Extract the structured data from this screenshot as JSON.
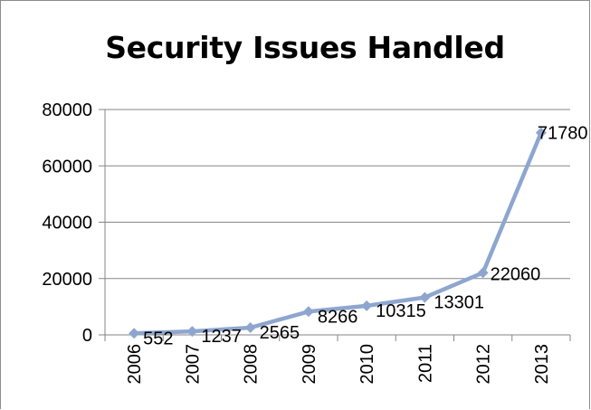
{
  "chart_data": {
    "type": "line",
    "title": "Security Issues Handled",
    "categories": [
      "2006",
      "2007",
      "2008",
      "2009",
      "2010",
      "2011",
      "2012",
      "2013"
    ],
    "series": [
      {
        "values": [
          552,
          1237,
          2565,
          8266,
          10315,
          13301,
          22060,
          71780
        ],
        "color": "#8EA6CF"
      }
    ],
    "data_labels": [
      "552",
      "1237",
      "2565",
      "8266",
      "10315",
      "13301",
      "22060",
      "71780"
    ],
    "y_ticks": [
      "0",
      "20000",
      "40000",
      "60000",
      "80000"
    ],
    "ylim": [
      0,
      80000
    ],
    "grid": true,
    "gridline_color": "#868686",
    "legend": "none"
  }
}
